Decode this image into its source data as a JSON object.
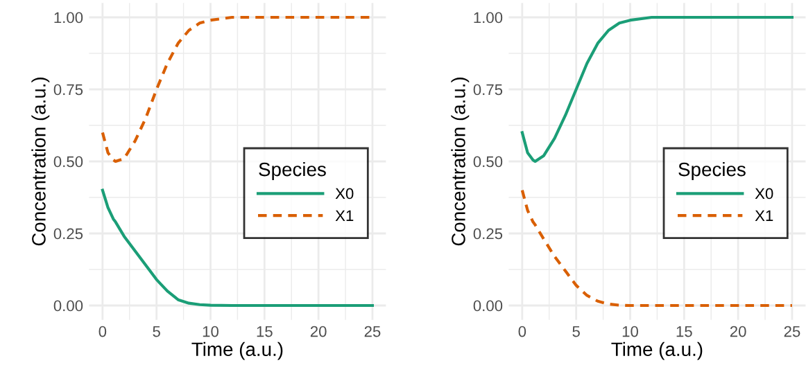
{
  "chart_data": [
    {
      "type": "line",
      "xlabel": "Time (a.u.)",
      "ylabel": "Concentration (a.u.)",
      "legend_title": "Species",
      "legend": "right",
      "grid": true,
      "xlim": [
        -1.25,
        26.25
      ],
      "ylim": [
        -0.05,
        1.05
      ],
      "xticks": [
        0,
        {
          "value": 2.5,
          "label": null
        },
        5,
        {
          "value": 7.5,
          "label": null
        },
        10,
        {
          "value": 12.5,
          "label": null
        },
        15,
        {
          "value": 17.5,
          "label": null
        },
        20,
        {
          "value": 22.5,
          "label": null
        },
        25
      ],
      "yticks": [
        {
          "value": 0,
          "label": "0.00"
        },
        {
          "value": 0.125,
          "label": null
        },
        {
          "value": 0.25,
          "label": "0.25"
        },
        {
          "value": 0.375,
          "label": null
        },
        {
          "value": 0.5,
          "label": "0.50"
        },
        {
          "value": 0.625,
          "label": null
        },
        {
          "value": 0.75,
          "label": "0.75"
        },
        {
          "value": 0.875,
          "label": null
        },
        {
          "value": 1,
          "label": "1.00"
        }
      ],
      "x": [
        0,
        0.5,
        1,
        1.2,
        2,
        3,
        4,
        5,
        6,
        7,
        8,
        9,
        10,
        12,
        25
      ],
      "series": [
        {
          "name": "X0",
          "color": "#1b9e77",
          "line_style": "solid",
          "values": [
            0.4,
            0.34,
            0.3,
            0.29,
            0.24,
            0.19,
            0.14,
            0.09,
            0.05,
            0.02,
            0.008,
            0.003,
            0.001,
            0,
            0
          ]
        },
        {
          "name": "X1",
          "color": "#d95f02",
          "line_style": "dashed",
          "values": [
            0.6,
            0.53,
            0.505,
            0.5,
            0.51,
            0.57,
            0.65,
            0.75,
            0.84,
            0.91,
            0.955,
            0.98,
            0.99,
            1.0,
            1.0
          ]
        }
      ]
    },
    {
      "type": "line",
      "xlabel": "Time (a.u.)",
      "ylabel": "Concentration (a.u.)",
      "legend_title": "Species",
      "legend": "right",
      "grid": true,
      "xlim": [
        -1.25,
        26.25
      ],
      "ylim": [
        -0.05,
        1.05
      ],
      "xticks": [
        0,
        {
          "value": 2.5,
          "label": null
        },
        5,
        {
          "value": 7.5,
          "label": null
        },
        10,
        {
          "value": 12.5,
          "label": null
        },
        15,
        {
          "value": 17.5,
          "label": null
        },
        20,
        {
          "value": 22.5,
          "label": null
        },
        25
      ],
      "yticks": [
        {
          "value": 0,
          "label": "0.00"
        },
        {
          "value": 0.125,
          "label": null
        },
        {
          "value": 0.25,
          "label": "0.25"
        },
        {
          "value": 0.375,
          "label": null
        },
        {
          "value": 0.5,
          "label": "0.50"
        },
        {
          "value": 0.625,
          "label": null
        },
        {
          "value": 0.75,
          "label": "0.75"
        },
        {
          "value": 0.875,
          "label": null
        },
        {
          "value": 1,
          "label": "1.00"
        }
      ],
      "x": [
        0,
        0.5,
        1,
        1.2,
        2,
        3,
        4,
        5,
        6,
        7,
        8,
        9,
        10,
        12,
        25
      ],
      "series": [
        {
          "name": "X0",
          "color": "#1b9e77",
          "line_style": "solid",
          "values": [
            0.6,
            0.53,
            0.505,
            0.5,
            0.52,
            0.58,
            0.66,
            0.75,
            0.84,
            0.91,
            0.955,
            0.98,
            0.99,
            1.0,
            1.0
          ]
        },
        {
          "name": "X1",
          "color": "#d95f02",
          "line_style": "dashed",
          "values": [
            0.4,
            0.33,
            0.29,
            0.28,
            0.23,
            0.17,
            0.12,
            0.07,
            0.035,
            0.015,
            0.005,
            0.001,
            0,
            0,
            0
          ]
        }
      ]
    }
  ]
}
